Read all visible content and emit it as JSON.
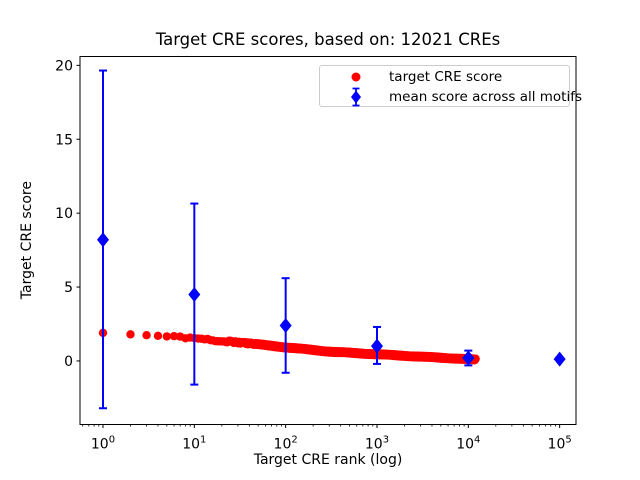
{
  "figure": {
    "title": "Target CRE scores, based on: 12021 CREs",
    "xlabel": "Target CRE rank (log)",
    "ylabel": "Target CRE score",
    "background": "#ffffff"
  },
  "legend": {
    "position": "upper right",
    "items": [
      {
        "label": "target CRE score",
        "marker": "circle",
        "color": "#ff0000"
      },
      {
        "label": "mean score across all motifs",
        "marker": "diamond-with-errorbar",
        "color": "#0000ff"
      }
    ]
  },
  "chart_data": {
    "type": "scatter",
    "title": "Target CRE scores, based on: 12021 CREs",
    "xlabel": "Target CRE rank (log)",
    "ylabel": "Target CRE score",
    "x_scale": "log10",
    "grid": false,
    "xlim": [
      0.56,
      151000
    ],
    "ylim": [
      -4.3,
      20.6
    ],
    "x_major_ticks": [
      1,
      10,
      100,
      1000,
      10000,
      100000
    ],
    "y_ticks": [
      0,
      5,
      10,
      15,
      20
    ],
    "series": [
      {
        "name": "target CRE score",
        "marker": "circle",
        "color": "#ff0000",
        "n_points": 12021,
        "description": "12021 red dots, one per integer rank, monotonically decreasing; dots separate at ranks 1-4 then merge into a dense band ending at rank 12021",
        "curve_control_points_rank_score": [
          [
            1,
            1.9
          ],
          [
            2,
            1.8
          ],
          [
            4,
            1.7
          ],
          [
            10,
            1.5
          ],
          [
            32,
            1.25
          ],
          [
            100,
            0.92
          ],
          [
            316,
            0.62
          ],
          [
            1000,
            0.45
          ],
          [
            3162,
            0.28
          ],
          [
            10000,
            0.12
          ],
          [
            12021,
            0.08
          ]
        ]
      },
      {
        "name": "mean score across all motifs",
        "marker": "diamond",
        "color": "#0000ff",
        "points": [
          {
            "rank": 1,
            "mean": 8.2,
            "lo": -3.2,
            "hi": 19.65
          },
          {
            "rank": 10,
            "mean": 4.5,
            "lo": -1.6,
            "hi": 10.65
          },
          {
            "rank": 100,
            "mean": 2.4,
            "lo": -0.8,
            "hi": 5.6
          },
          {
            "rank": 1000,
            "mean": 1.0,
            "lo": -0.2,
            "hi": 2.3
          },
          {
            "rank": 10000,
            "mean": 0.2,
            "lo": -0.3,
            "hi": 0.7
          },
          {
            "rank": 100000,
            "mean": 0.12,
            "lo": 0.12,
            "hi": 0.12
          }
        ]
      }
    ]
  }
}
